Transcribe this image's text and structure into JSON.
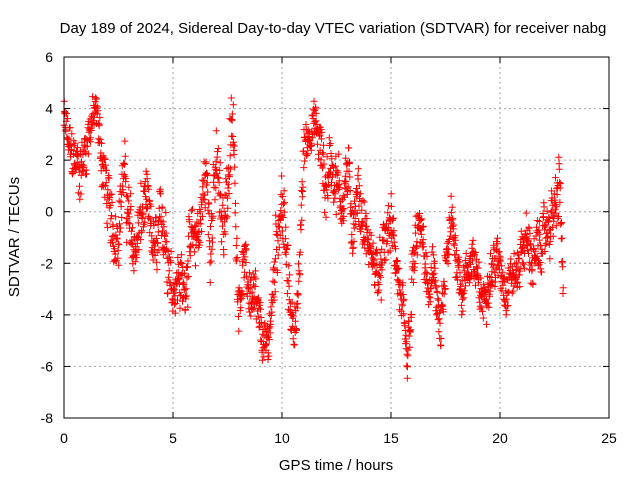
{
  "chart_data": {
    "type": "scatter",
    "title": "Day 189 of 2024, Sidereal Day-to-day VTEC variation (SDTVAR) for receiver nabg",
    "xlabel": "GPS time / hours",
    "ylabel": "SDTVAR / TECUs",
    "xlim": [
      0,
      25
    ],
    "ylim": [
      -8,
      6
    ],
    "xticks": [
      "0",
      "5",
      "10",
      "15",
      "20",
      "25"
    ],
    "yticks": [
      "-8",
      "-6",
      "-4",
      "-2",
      "0",
      "2",
      "4",
      "6"
    ],
    "grid": true,
    "marker": "+",
    "series_color": "#ff0000",
    "series": [
      {
        "name": "SDTVAR",
        "x": [
          0.0,
          0.25,
          0.5,
          0.75,
          1.0,
          1.25,
          1.5,
          1.75,
          2.0,
          2.25,
          2.5,
          2.75,
          3.0,
          3.25,
          3.5,
          3.75,
          4.0,
          4.25,
          4.5,
          4.75,
          5.0,
          5.25,
          5.5,
          5.75,
          6.0,
          6.25,
          6.5,
          6.75,
          7.0,
          7.25,
          7.5,
          7.75,
          8.0,
          8.25,
          8.5,
          8.75,
          9.0,
          9.25,
          9.5,
          9.75,
          10.0,
          10.25,
          10.5,
          10.75,
          11.0,
          11.25,
          11.5,
          11.75,
          12.0,
          12.25,
          12.5,
          12.75,
          13.0,
          13.25,
          13.5,
          13.75,
          14.0,
          14.25,
          14.5,
          14.75,
          15.0,
          15.25,
          15.5,
          15.75,
          16.0,
          16.25,
          16.5,
          16.75,
          17.0,
          17.25,
          17.5,
          17.75,
          18.0,
          18.25,
          18.5,
          18.75,
          19.0,
          19.25,
          19.5,
          19.75,
          20.0,
          20.25,
          20.5,
          20.75,
          21.0,
          21.25,
          21.5,
          21.75,
          22.0,
          22.25,
          22.5,
          22.75,
          22.9
        ],
        "y": [
          3.5,
          2.5,
          2.0,
          1.5,
          2.5,
          3.5,
          3.8,
          2.0,
          0.5,
          -1.0,
          -0.5,
          1.5,
          -0.5,
          -1.5,
          -0.5,
          0.5,
          -1.0,
          -1.5,
          0.0,
          -1.5,
          -3.0,
          -2.5,
          -3.0,
          -1.5,
          -1.0,
          -0.5,
          1.5,
          -1.0,
          2.0,
          -0.5,
          1.0,
          3.5,
          -3.5,
          -2.0,
          -3.0,
          -3.5,
          -4.5,
          -5.5,
          -4.0,
          -1.0,
          0.5,
          -2.5,
          -4.5,
          -3.5,
          2.5,
          3.0,
          3.5,
          2.5,
          1.0,
          2.0,
          1.0,
          0.5,
          1.5,
          -0.5,
          0.5,
          -0.5,
          -1.5,
          -2.0,
          -2.5,
          -1.0,
          -0.5,
          -2.0,
          -4.0,
          -6.0,
          -2.5,
          -0.5,
          -1.5,
          -3.5,
          -2.0,
          -5.0,
          -2.5,
          -0.5,
          -1.5,
          -3.0,
          -2.5,
          -1.5,
          -3.0,
          -3.5,
          -2.5,
          -2.0,
          -2.0,
          -3.0,
          -2.5,
          -2.5,
          -1.5,
          -1.0,
          -2.0,
          -1.5,
          -1.0,
          -0.5,
          0.0,
          1.0,
          -3.0
        ],
        "spread": [
          1.2,
          1.3,
          1.4,
          1.5,
          1.4,
          1.2,
          1.0,
          1.5,
          1.8,
          1.5,
          1.6,
          1.6,
          1.8,
          1.5,
          1.7,
          1.6,
          1.6,
          1.5,
          1.6,
          1.8,
          1.2,
          1.6,
          1.5,
          1.6,
          1.6,
          2.0,
          1.8,
          2.0,
          1.8,
          2.0,
          2.2,
          1.6,
          1.2,
          1.2,
          1.4,
          1.6,
          1.2,
          1.2,
          1.4,
          1.8,
          1.8,
          1.8,
          1.0,
          1.4,
          1.2,
          1.0,
          1.0,
          1.6,
          2.0,
          1.6,
          1.8,
          1.6,
          1.6,
          1.6,
          1.6,
          1.4,
          1.2,
          1.2,
          1.4,
          1.4,
          1.4,
          1.2,
          1.6,
          1.4,
          1.8,
          1.0,
          1.2,
          1.2,
          1.6,
          1.4,
          1.4,
          1.4,
          1.6,
          1.2,
          1.2,
          1.2,
          1.2,
          1.2,
          1.2,
          1.2,
          1.2,
          1.2,
          1.2,
          1.2,
          1.2,
          1.2,
          1.4,
          1.4,
          1.2,
          1.4,
          1.4,
          1.8,
          1.2
        ]
      }
    ]
  }
}
